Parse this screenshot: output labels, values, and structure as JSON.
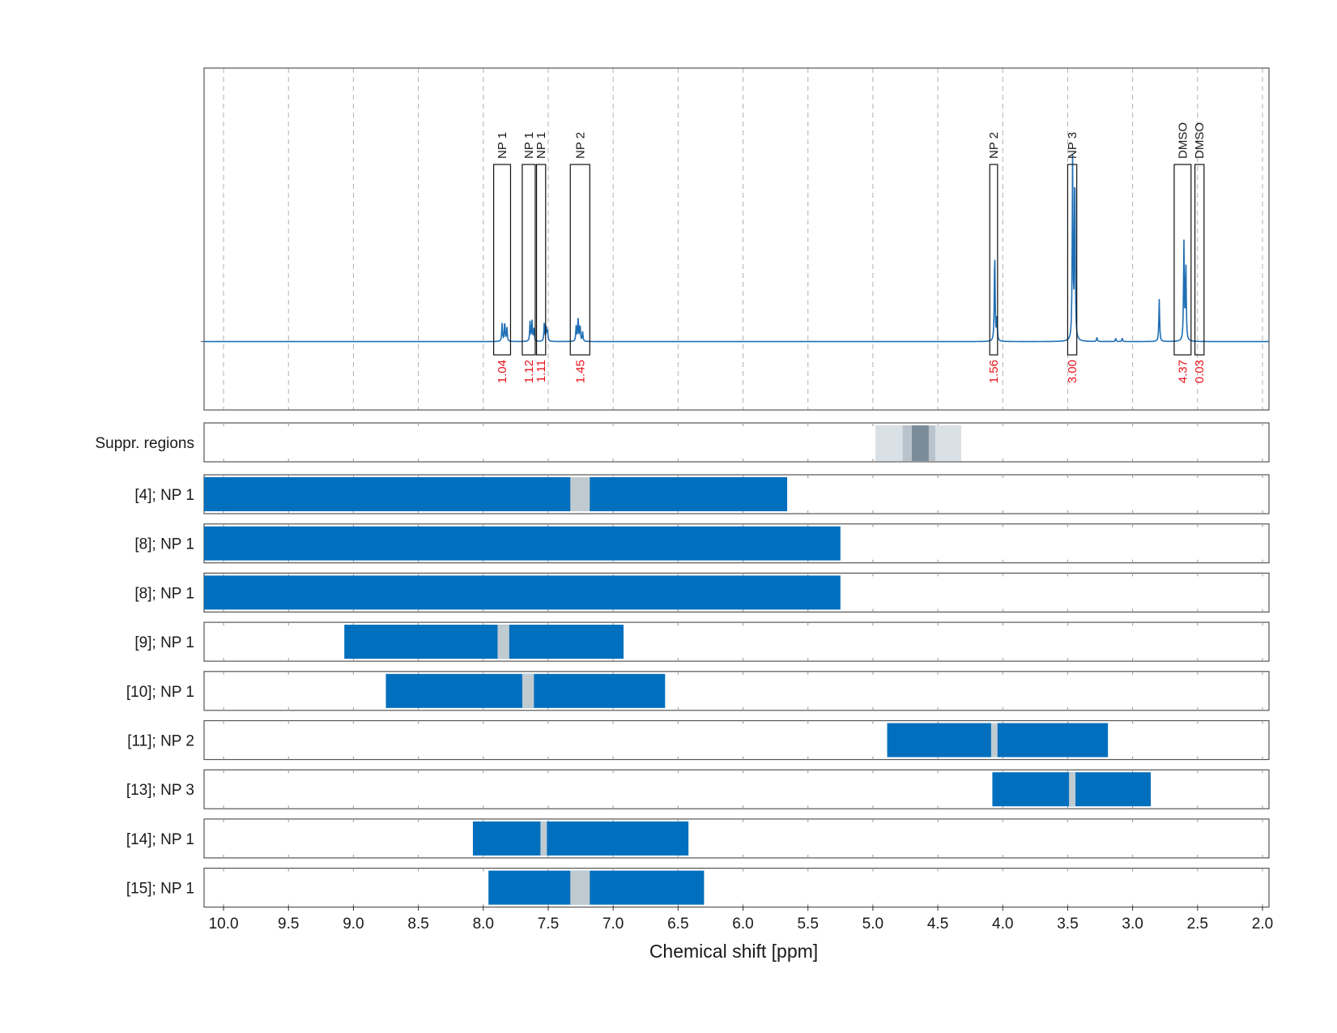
{
  "chart_data": {
    "type": "nmr-spectrum-with-range-tracks",
    "xlabel": "Chemical shift [ppm]",
    "xlim": [
      10.15,
      1.95
    ],
    "x_reversed": true,
    "x_ticks": [
      10.0,
      9.5,
      9.0,
      8.5,
      8.0,
      7.5,
      7.0,
      6.5,
      6.0,
      5.5,
      5.0,
      4.5,
      4.0,
      3.5,
      3.0,
      2.5,
      2.0
    ],
    "x_tick_labels": [
      "10.0",
      "9.5",
      "9.0",
      "8.5",
      "8.0",
      "7.5",
      "7.0",
      "6.5",
      "6.0",
      "5.5",
      "5.0",
      "4.5",
      "4.0",
      "3.5",
      "3.0",
      "2.5",
      "2.0"
    ],
    "grid": "dashed-vertical",
    "colors": {
      "spectrum": "#1f6fb5",
      "range_bar": "#006fbd",
      "range_gap": "#bfcad1",
      "integral_text": "#e8141c",
      "suppr_light": "#d9e0e6",
      "suppr_mid": "#b8c3cc",
      "suppr_dark": "#7a8b99"
    },
    "spectrum": {
      "baseline": 0.0,
      "ymax": 1.0,
      "ymin": -0.25,
      "peaks": [
        {
          "ppm": 7.855,
          "height": 0.066
        },
        {
          "ppm": 7.835,
          "height": 0.072
        },
        {
          "ppm": 7.818,
          "height": 0.05
        },
        {
          "ppm": 7.64,
          "height": 0.072
        },
        {
          "ppm": 7.625,
          "height": 0.075
        },
        {
          "ppm": 7.61,
          "height": 0.05
        },
        {
          "ppm": 7.53,
          "height": 0.07
        },
        {
          "ppm": 7.515,
          "height": 0.05
        },
        {
          "ppm": 7.505,
          "height": 0.04
        },
        {
          "ppm": 7.285,
          "height": 0.055
        },
        {
          "ppm": 7.27,
          "height": 0.085
        },
        {
          "ppm": 7.255,
          "height": 0.06
        },
        {
          "ppm": 7.235,
          "height": 0.035
        },
        {
          "ppm": 4.062,
          "height": 0.33
        },
        {
          "ppm": 4.045,
          "height": 0.08
        },
        {
          "ppm": 3.462,
          "height": 0.66
        },
        {
          "ppm": 3.445,
          "height": 0.64
        },
        {
          "ppm": 3.275,
          "height": 0.015
        },
        {
          "ppm": 3.13,
          "height": 0.012
        },
        {
          "ppm": 3.08,
          "height": 0.012
        },
        {
          "ppm": 2.795,
          "height": 0.155
        },
        {
          "ppm": 2.605,
          "height": 0.36
        },
        {
          "ppm": 2.59,
          "height": 0.28
        }
      ]
    },
    "peak_boxes": [
      {
        "label": "NP 1",
        "integral": "1.04",
        "from": 7.92,
        "to": 7.79
      },
      {
        "label": "NP 1",
        "integral": "1.12",
        "from": 7.7,
        "to": 7.6
      },
      {
        "label": "NP 1",
        "integral": "1.11",
        "from": 7.59,
        "to": 7.52
      },
      {
        "label": "NP 2",
        "integral": "1.45",
        "from": 7.33,
        "to": 7.18
      },
      {
        "label": "NP 2",
        "integral": "1.56",
        "from": 4.1,
        "to": 4.04
      },
      {
        "label": "NP 3",
        "integral": "3.00",
        "from": 3.5,
        "to": 3.43
      },
      {
        "label": "DMSO",
        "integral": "4.37",
        "from": 2.68,
        "to": 2.55
      },
      {
        "label": "DMSO",
        "integral": "0.03",
        "from": 2.52,
        "to": 2.45
      }
    ],
    "suppr_regions": {
      "label": "Suppr. regions",
      "bands": [
        {
          "from": 4.98,
          "to": 4.32,
          "shade": "light"
        },
        {
          "from": 4.77,
          "to": 4.52,
          "shade": "mid"
        },
        {
          "from": 4.7,
          "to": 4.57,
          "shade": "dark"
        }
      ]
    },
    "tracks": [
      {
        "label": "[4]; NP 1",
        "from": 10.15,
        "to": 5.66,
        "gap": [
          7.33,
          7.18
        ]
      },
      {
        "label": "[8]; NP 1",
        "from": 10.15,
        "to": 5.25,
        "gap": null
      },
      {
        "label": "[8]; NP 1",
        "from": 10.15,
        "to": 5.25,
        "gap": null
      },
      {
        "label": "[9]; NP 1",
        "from": 9.07,
        "to": 6.92,
        "gap": [
          7.89,
          7.8
        ]
      },
      {
        "label": "[10]; NP 1",
        "from": 8.75,
        "to": 6.6,
        "gap": [
          7.7,
          7.61
        ]
      },
      {
        "label": "[11]; NP 2",
        "from": 4.89,
        "to": 3.19,
        "gap": [
          4.09,
          4.04
        ]
      },
      {
        "label": "[13]; NP 3",
        "from": 4.08,
        "to": 2.86,
        "gap": [
          3.49,
          3.44
        ]
      },
      {
        "label": "[14]; NP 1",
        "from": 8.08,
        "to": 6.42,
        "gap": [
          7.56,
          7.51
        ]
      },
      {
        "label": "[15]; NP 1",
        "from": 7.96,
        "to": 6.3,
        "gap": [
          7.33,
          7.18
        ]
      }
    ]
  }
}
